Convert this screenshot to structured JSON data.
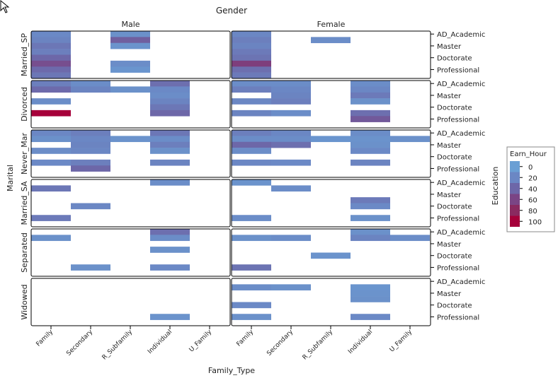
{
  "chart_data": {
    "type": "heatmap",
    "title": "Gender",
    "xlabel": "Family_Type",
    "ylabel": "Marital",
    "y2label": "Education",
    "column_facets": [
      "Male",
      "Female"
    ],
    "row_facets": [
      "Married_SP",
      "Divorced",
      "Never_Mar",
      "Married_SA",
      "Separated",
      "Widowed"
    ],
    "x_categories": [
      "Family",
      "Secondary",
      "R_Subfamily",
      "Individual",
      "U_Family"
    ],
    "y_tick_labels": [
      "AD_Academic",
      "Master",
      "Doctorate",
      "Professional"
    ],
    "legend": {
      "title": "Earn_Hour",
      "values": [
        0,
        20,
        40,
        60,
        80,
        100
      ],
      "colors": [
        "#6a9fd4",
        "#6b87c4",
        "#6d67a8",
        "#7a4585",
        "#8a2a60",
        "#a6003a"
      ],
      "placement": "right"
    },
    "color_range": [
      0,
      100
    ],
    "levels": 8,
    "note_levels": "y level index 0..7 from top of each panel",
    "cells": [
      {
        "g": 0,
        "r": 0,
        "x": 0,
        "l": 0,
        "v": 18
      },
      {
        "g": 0,
        "r": 0,
        "x": 0,
        "l": 1,
        "v": 22
      },
      {
        "g": 0,
        "r": 0,
        "x": 0,
        "l": 2,
        "v": 30
      },
      {
        "g": 0,
        "r": 0,
        "x": 0,
        "l": 3,
        "v": 25
      },
      {
        "g": 0,
        "r": 0,
        "x": 0,
        "l": 4,
        "v": 40
      },
      {
        "g": 0,
        "r": 0,
        "x": 0,
        "l": 5,
        "v": 55
      },
      {
        "g": 0,
        "r": 0,
        "x": 0,
        "l": 6,
        "v": 38
      },
      {
        "g": 0,
        "r": 0,
        "x": 0,
        "l": 7,
        "v": 30
      },
      {
        "g": 0,
        "r": 0,
        "x": 2,
        "l": 0,
        "v": 12
      },
      {
        "g": 0,
        "r": 0,
        "x": 2,
        "l": 1,
        "v": 45
      },
      {
        "g": 0,
        "r": 0,
        "x": 2,
        "l": 2,
        "v": 10
      },
      {
        "g": 0,
        "r": 0,
        "x": 2,
        "l": 5,
        "v": 15
      },
      {
        "g": 0,
        "r": 0,
        "x": 2,
        "l": 6,
        "v": 8
      },
      {
        "g": 1,
        "r": 0,
        "x": 0,
        "l": 0,
        "v": 20
      },
      {
        "g": 1,
        "r": 0,
        "x": 0,
        "l": 1,
        "v": 25
      },
      {
        "g": 1,
        "r": 0,
        "x": 0,
        "l": 2,
        "v": 22
      },
      {
        "g": 1,
        "r": 0,
        "x": 0,
        "l": 3,
        "v": 28
      },
      {
        "g": 1,
        "r": 0,
        "x": 0,
        "l": 4,
        "v": 32
      },
      {
        "g": 1,
        "r": 0,
        "x": 0,
        "l": 5,
        "v": 65
      },
      {
        "g": 1,
        "r": 0,
        "x": 0,
        "l": 6,
        "v": 35
      },
      {
        "g": 1,
        "r": 0,
        "x": 0,
        "l": 7,
        "v": 28
      },
      {
        "g": 1,
        "r": 0,
        "x": 2,
        "l": 1,
        "v": 15
      },
      {
        "g": 0,
        "r": 1,
        "x": 0,
        "l": 0,
        "v": 25
      },
      {
        "g": 0,
        "r": 1,
        "x": 0,
        "l": 1,
        "v": 38
      },
      {
        "g": 0,
        "r": 1,
        "x": 0,
        "l": 3,
        "v": 15
      },
      {
        "g": 0,
        "r": 1,
        "x": 0,
        "l": 5,
        "v": 100
      },
      {
        "g": 0,
        "r": 1,
        "x": 1,
        "l": 0,
        "v": 15
      },
      {
        "g": 0,
        "r": 1,
        "x": 1,
        "l": 1,
        "v": 22
      },
      {
        "g": 0,
        "r": 1,
        "x": 2,
        "l": 1,
        "v": 12
      },
      {
        "g": 0,
        "r": 1,
        "x": 3,
        "l": 0,
        "v": 35
      },
      {
        "g": 0,
        "r": 1,
        "x": 3,
        "l": 1,
        "v": 18
      },
      {
        "g": 0,
        "r": 1,
        "x": 3,
        "l": 2,
        "v": 15
      },
      {
        "g": 0,
        "r": 1,
        "x": 3,
        "l": 3,
        "v": 22
      },
      {
        "g": 0,
        "r": 1,
        "x": 3,
        "l": 4,
        "v": 30
      },
      {
        "g": 0,
        "r": 1,
        "x": 3,
        "l": 5,
        "v": 40
      },
      {
        "g": 1,
        "r": 1,
        "x": 0,
        "l": 0,
        "v": 15
      },
      {
        "g": 1,
        "r": 1,
        "x": 0,
        "l": 1,
        "v": 25
      },
      {
        "g": 1,
        "r": 1,
        "x": 0,
        "l": 3,
        "v": 20
      },
      {
        "g": 1,
        "r": 1,
        "x": 0,
        "l": 5,
        "v": 22
      },
      {
        "g": 1,
        "r": 1,
        "x": 1,
        "l": 0,
        "v": 15
      },
      {
        "g": 1,
        "r": 1,
        "x": 1,
        "l": 1,
        "v": 20
      },
      {
        "g": 1,
        "r": 1,
        "x": 1,
        "l": 2,
        "v": 22
      },
      {
        "g": 1,
        "r": 1,
        "x": 1,
        "l": 3,
        "v": 25
      },
      {
        "g": 1,
        "r": 1,
        "x": 1,
        "l": 5,
        "v": 15
      },
      {
        "g": 1,
        "r": 1,
        "x": 3,
        "l": 0,
        "v": 15
      },
      {
        "g": 1,
        "r": 1,
        "x": 3,
        "l": 1,
        "v": 20
      },
      {
        "g": 1,
        "r": 1,
        "x": 3,
        "l": 2,
        "v": 28
      },
      {
        "g": 1,
        "r": 1,
        "x": 3,
        "l": 3,
        "v": 12
      },
      {
        "g": 1,
        "r": 1,
        "x": 3,
        "l": 5,
        "v": 35
      },
      {
        "g": 1,
        "r": 1,
        "x": 3,
        "l": 6,
        "v": 48
      },
      {
        "g": 0,
        "r": 2,
        "x": 0,
        "l": 0,
        "v": 20
      },
      {
        "g": 0,
        "r": 2,
        "x": 0,
        "l": 1,
        "v": 12
      },
      {
        "g": 0,
        "r": 2,
        "x": 0,
        "l": 3,
        "v": 15
      },
      {
        "g": 0,
        "r": 2,
        "x": 0,
        "l": 5,
        "v": 18
      },
      {
        "g": 0,
        "r": 2,
        "x": 1,
        "l": 0,
        "v": 25
      },
      {
        "g": 0,
        "r": 2,
        "x": 1,
        "l": 1,
        "v": 20
      },
      {
        "g": 0,
        "r": 2,
        "x": 1,
        "l": 2,
        "v": 22
      },
      {
        "g": 0,
        "r": 2,
        "x": 1,
        "l": 3,
        "v": 20
      },
      {
        "g": 0,
        "r": 2,
        "x": 1,
        "l": 5,
        "v": 25
      },
      {
        "g": 0,
        "r": 2,
        "x": 1,
        "l": 6,
        "v": 40
      },
      {
        "g": 0,
        "r": 2,
        "x": 2,
        "l": 1,
        "v": 10
      },
      {
        "g": 0,
        "r": 2,
        "x": 3,
        "l": 0,
        "v": 30
      },
      {
        "g": 0,
        "r": 2,
        "x": 3,
        "l": 1,
        "v": 15
      },
      {
        "g": 0,
        "r": 2,
        "x": 3,
        "l": 2,
        "v": 25
      },
      {
        "g": 0,
        "r": 2,
        "x": 3,
        "l": 3,
        "v": 12
      },
      {
        "g": 0,
        "r": 2,
        "x": 3,
        "l": 5,
        "v": 22
      },
      {
        "g": 1,
        "r": 2,
        "x": 0,
        "l": 0,
        "v": 25
      },
      {
        "g": 1,
        "r": 2,
        "x": 0,
        "l": 1,
        "v": 15
      },
      {
        "g": 1,
        "r": 2,
        "x": 0,
        "l": 2,
        "v": 40
      },
      {
        "g": 1,
        "r": 2,
        "x": 0,
        "l": 3,
        "v": 15
      },
      {
        "g": 1,
        "r": 2,
        "x": 0,
        "l": 5,
        "v": 20
      },
      {
        "g": 1,
        "r": 2,
        "x": 1,
        "l": 0,
        "v": 20
      },
      {
        "g": 1,
        "r": 2,
        "x": 1,
        "l": 1,
        "v": 15
      },
      {
        "g": 1,
        "r": 2,
        "x": 1,
        "l": 2,
        "v": 35
      },
      {
        "g": 1,
        "r": 2,
        "x": 1,
        "l": 5,
        "v": 18
      },
      {
        "g": 1,
        "r": 2,
        "x": 2,
        "l": 1,
        "v": 8
      },
      {
        "g": 1,
        "r": 2,
        "x": 3,
        "l": 0,
        "v": 15
      },
      {
        "g": 1,
        "r": 2,
        "x": 3,
        "l": 1,
        "v": 10
      },
      {
        "g": 1,
        "r": 2,
        "x": 3,
        "l": 2,
        "v": 12
      },
      {
        "g": 1,
        "r": 2,
        "x": 3,
        "l": 3,
        "v": 18
      },
      {
        "g": 1,
        "r": 2,
        "x": 3,
        "l": 5,
        "v": 22
      },
      {
        "g": 1,
        "r": 2,
        "x": 4,
        "l": 1,
        "v": 12
      },
      {
        "g": 0,
        "r": 3,
        "x": 0,
        "l": 1,
        "v": 30
      },
      {
        "g": 0,
        "r": 3,
        "x": 0,
        "l": 6,
        "v": 28
      },
      {
        "g": 0,
        "r": 3,
        "x": 1,
        "l": 4,
        "v": 20
      },
      {
        "g": 0,
        "r": 3,
        "x": 3,
        "l": 0,
        "v": 15
      },
      {
        "g": 1,
        "r": 3,
        "x": 0,
        "l": 0,
        "v": 10
      },
      {
        "g": 1,
        "r": 3,
        "x": 0,
        "l": 6,
        "v": 15
      },
      {
        "g": 1,
        "r": 3,
        "x": 1,
        "l": 1,
        "v": 15
      },
      {
        "g": 1,
        "r": 3,
        "x": 3,
        "l": 3,
        "v": 28
      },
      {
        "g": 1,
        "r": 3,
        "x": 3,
        "l": 4,
        "v": 18
      },
      {
        "g": 1,
        "r": 3,
        "x": 3,
        "l": 6,
        "v": 12
      },
      {
        "g": 0,
        "r": 4,
        "x": 0,
        "l": 1,
        "v": 12
      },
      {
        "g": 0,
        "r": 4,
        "x": 1,
        "l": 6,
        "v": 12
      },
      {
        "g": 0,
        "r": 4,
        "x": 3,
        "l": 0,
        "v": 35
      },
      {
        "g": 0,
        "r": 4,
        "x": 3,
        "l": 1,
        "v": 15
      },
      {
        "g": 0,
        "r": 4,
        "x": 3,
        "l": 3,
        "v": 12
      },
      {
        "g": 0,
        "r": 4,
        "x": 3,
        "l": 6,
        "v": 18
      },
      {
        "g": 1,
        "r": 4,
        "x": 0,
        "l": 1,
        "v": 12
      },
      {
        "g": 1,
        "r": 4,
        "x": 0,
        "l": 6,
        "v": 32
      },
      {
        "g": 1,
        "r": 4,
        "x": 1,
        "l": 1,
        "v": 15
      },
      {
        "g": 1,
        "r": 4,
        "x": 2,
        "l": 4,
        "v": 10
      },
      {
        "g": 1,
        "r": 4,
        "x": 3,
        "l": 0,
        "v": 12
      },
      {
        "g": 1,
        "r": 4,
        "x": 3,
        "l": 1,
        "v": 22
      },
      {
        "g": 1,
        "r": 4,
        "x": 4,
        "l": 1,
        "v": 15
      },
      {
        "g": 0,
        "r": 5,
        "x": 3,
        "l": 6,
        "v": 10
      },
      {
        "g": 1,
        "r": 5,
        "x": 0,
        "l": 1,
        "v": 15
      },
      {
        "g": 1,
        "r": 5,
        "x": 0,
        "l": 4,
        "v": 18
      },
      {
        "g": 1,
        "r": 5,
        "x": 0,
        "l": 6,
        "v": 12
      },
      {
        "g": 1,
        "r": 5,
        "x": 1,
        "l": 1,
        "v": 12
      },
      {
        "g": 1,
        "r": 5,
        "x": 3,
        "l": 1,
        "v": 8
      },
      {
        "g": 1,
        "r": 5,
        "x": 3,
        "l": 2,
        "v": 10
      },
      {
        "g": 1,
        "r": 5,
        "x": 3,
        "l": 3,
        "v": 12
      },
      {
        "g": 1,
        "r": 5,
        "x": 3,
        "l": 6,
        "v": 18
      }
    ]
  }
}
